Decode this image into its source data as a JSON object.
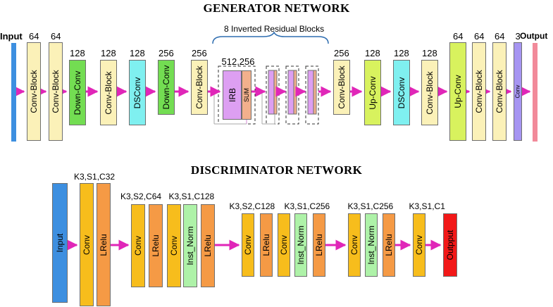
{
  "generator": {
    "title": "GENERATOR NETWORK",
    "input_label": "Input",
    "output_label": "Output",
    "irb_caption": "8 Inverted Residual Blocks",
    "blocks": [
      {
        "label": "Conv-Block",
        "top": "64",
        "color": "#fbf1b8"
      },
      {
        "label": "Conv-Block",
        "top": "64",
        "color": "#fbf1b8"
      },
      {
        "label": "Down-Conv",
        "top": "128",
        "color": "#73dd52"
      },
      {
        "label": "Conv-Block",
        "top": "128",
        "color": "#fbf1b8"
      },
      {
        "label": "DSConv",
        "top": "128",
        "color": "#7ff0f0"
      },
      {
        "label": "Down-Conv",
        "top": "256",
        "color": "#73dd52"
      },
      {
        "label": "Conv-Block",
        "top": "256",
        "color": "#fbf1b8"
      },
      {
        "label": "IRB",
        "top": "512,256",
        "color": "#dd9ff2"
      },
      {
        "label": "SUM",
        "top": "",
        "color": "#f2b08c"
      },
      {
        "label": "Conv-Block",
        "top": "256",
        "color": "#fbf1b8"
      },
      {
        "label": "Up-Conv",
        "top": "128",
        "color": "#d8f25e"
      },
      {
        "label": "DSConv",
        "top": "128",
        "color": "#7ff0f0"
      },
      {
        "label": "Conv-Block",
        "top": "128",
        "color": "#fbf1b8"
      },
      {
        "label": "Up-Conv",
        "top": "64",
        "color": "#d8f25e"
      },
      {
        "label": "Conv-Block",
        "top": "64",
        "color": "#fbf1b8"
      },
      {
        "label": "Conv-Block",
        "top": "64",
        "color": "#fbf1b8"
      },
      {
        "label": "Conv",
        "top": "3",
        "color": "#a695f2"
      }
    ],
    "colors": {
      "input": "#3d8fe0",
      "output": "#f28a9a",
      "arrow": "#e026b8"
    }
  },
  "discriminator": {
    "title": "DISCRIMINATOR NETWORK",
    "blocks": [
      {
        "label": "Input",
        "color": "#3d8fe0"
      },
      {
        "label": "Conv",
        "color": "#f7bd1c"
      },
      {
        "label": "LRelu",
        "color": "#f59a45"
      },
      {
        "label": "Conv",
        "color": "#f7bd1c"
      },
      {
        "label": "LRelu",
        "color": "#f59a45"
      },
      {
        "label": "Conv",
        "color": "#f7bd1c"
      },
      {
        "label": "Inst_Norm",
        "color": "#aef2a8"
      },
      {
        "label": "LRelu",
        "color": "#f59a45"
      },
      {
        "label": "Conv",
        "color": "#f7bd1c"
      },
      {
        "label": "LRelu",
        "color": "#f59a45"
      },
      {
        "label": "Conv",
        "color": "#f7bd1c"
      },
      {
        "label": "Inst_Norm",
        "color": "#aef2a8"
      },
      {
        "label": "LRelu",
        "color": "#f59a45"
      },
      {
        "label": "Conv",
        "color": "#f7bd1c"
      },
      {
        "label": "Inst_Norm",
        "color": "#aef2a8"
      },
      {
        "label": "LRelu",
        "color": "#f59a45"
      },
      {
        "label": "Conv",
        "color": "#f7bd1c"
      },
      {
        "label": "Outpput",
        "color": "#f21818"
      }
    ],
    "params": [
      "K3,S1,C32",
      "K3,S2,C64",
      "K3,S1,C128",
      "K3,S2,C128",
      "K3,S1,C256",
      "K3,S1,C256",
      "K3,S1,C1"
    ],
    "colors": {
      "arrow": "#e026b8"
    }
  }
}
